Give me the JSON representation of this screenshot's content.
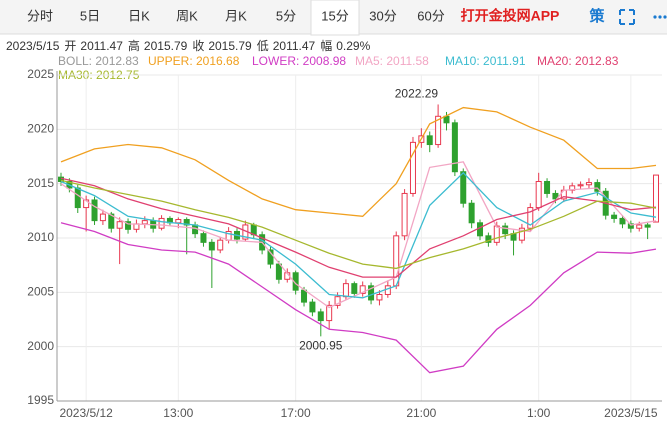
{
  "tabs": [
    {
      "label": "分时"
    },
    {
      "label": "5日"
    },
    {
      "label": "日K"
    },
    {
      "label": "周K"
    },
    {
      "label": "月K"
    },
    {
      "label": "5分"
    },
    {
      "label": "15分",
      "active": true
    },
    {
      "label": "30分"
    },
    {
      "label": "60分"
    }
  ],
  "app_link": "打开金投网APP",
  "strategy": "策",
  "quote": {
    "date": "2023/5/15",
    "items": [
      {
        "label": "开",
        "value": "2011.47"
      },
      {
        "label": "高",
        "value": "2015.79"
      },
      {
        "label": "收",
        "value": "2015.79"
      },
      {
        "label": "低",
        "value": "2011.47"
      },
      {
        "label": "幅",
        "value": "0.29%"
      }
    ]
  },
  "chart_data": {
    "type": "candlestick",
    "up_color": "#e8384f",
    "down_color": "#2ea12e",
    "grid": true,
    "ylim": [
      1995,
      2025
    ],
    "yticks": [
      1995,
      2000,
      2005,
      2010,
      2015,
      2020,
      2025
    ],
    "categories": [
      null,
      null,
      null,
      "2023/5/12",
      null,
      null,
      null,
      null,
      null,
      null,
      null,
      null,
      null,
      null,
      "13:00",
      null,
      null,
      null,
      null,
      null,
      null,
      null,
      null,
      null,
      null,
      null,
      null,
      null,
      "17:00",
      null,
      null,
      null,
      null,
      null,
      null,
      null,
      null,
      null,
      null,
      null,
      null,
      null,
      null,
      "21:00",
      null,
      null,
      null,
      null,
      null,
      null,
      null,
      null,
      null,
      null,
      null,
      null,
      null,
      "1:00",
      null,
      null,
      null,
      null,
      null,
      null,
      null,
      null,
      null,
      null,
      "2023/5/15",
      null,
      null,
      null
    ],
    "candles": {
      "open": [
        2015.6,
        2015.2,
        2014.6,
        2012.8,
        2013.5,
        2011.6,
        2012.2,
        2010.9,
        2011.5,
        2010.8,
        2011.3,
        2011.6,
        2010.9,
        2011.8,
        2011.4,
        2011.7,
        2011.2,
        2010.4,
        2009.6,
        2008.9,
        2009.8,
        2010.6,
        2009.9,
        2011.2,
        2010.3,
        2008.9,
        2007.6,
        2006.2,
        2006.8,
        2005.2,
        2004.1,
        2003.2,
        2002.4,
        2003.8,
        2004.6,
        2005.8,
        2004.9,
        2005.6,
        2004.3,
        2004.8,
        2005.6,
        2010.2,
        2014.1,
        2018.8,
        2019.4,
        2018.6,
        2021.2,
        2020.6,
        2016.1,
        2013.2,
        2011.4,
        2010.2,
        2009.6,
        2011.1,
        2010.4,
        2009.8,
        2010.9,
        2012.8,
        2015.2,
        2014.1,
        2013.6,
        2014.4,
        2014.8,
        2014.9,
        2015.1,
        2014.3,
        2012.1,
        2011.8,
        2011.3,
        2010.9,
        2011.2,
        2011.47
      ],
      "high": [
        2016.0,
        2015.5,
        2014.9,
        2013.9,
        2013.8,
        2012.6,
        2012.4,
        2011.9,
        2011.8,
        2011.7,
        2012.0,
        2011.9,
        2012.1,
        2012.0,
        2011.9,
        2011.9,
        2011.5,
        2010.7,
        2009.9,
        2010.1,
        2011.0,
        2010.9,
        2011.6,
        2011.4,
        2010.6,
        2009.2,
        2007.9,
        2007.2,
        2007.0,
        2005.5,
        2004.4,
        2003.5,
        2004.2,
        2005.0,
        2006.2,
        2006.0,
        2006.0,
        2005.9,
        2005.2,
        2006.1,
        2010.6,
        2014.5,
        2019.3,
        2020.1,
        2019.8,
        2022.29,
        2021.6,
        2020.9,
        2016.4,
        2013.5,
        2011.7,
        2010.5,
        2011.5,
        2011.4,
        2010.7,
        2011.3,
        2013.2,
        2016.0,
        2015.5,
        2014.4,
        2014.8,
        2015.1,
        2015.2,
        2015.5,
        2015.4,
        2014.6,
        2012.4,
        2012.1,
        2011.6,
        2011.5,
        2011.4,
        2015.79
      ],
      "low": [
        2014.8,
        2014.2,
        2012.3,
        2010.6,
        2011.2,
        2011.2,
        2010.5,
        2007.6,
        2010.4,
        2010.5,
        2010.9,
        2010.5,
        2010.7,
        2011.1,
        2010.9,
        2008.5,
        2010.0,
        2009.2,
        2005.4,
        2008.6,
        2009.5,
        2009.5,
        2009.7,
        2009.9,
        2008.5,
        2007.2,
        2005.8,
        2005.9,
        2004.8,
        2003.7,
        2002.8,
        2000.95,
        2001.6,
        2003.5,
        2004.3,
        2004.5,
        2004.6,
        2003.9,
        2003.8,
        2004.5,
        2005.3,
        2009.8,
        2013.8,
        2018.3,
        2017.9,
        2018.3,
        2019.9,
        2015.7,
        2012.8,
        2010.9,
        2009.8,
        2009.2,
        2009.3,
        2009.9,
        2008.4,
        2009.5,
        2010.6,
        2012.5,
        2013.7,
        2013.2,
        2013.3,
        2014.1,
        2014.5,
        2014.6,
        2013.9,
        2011.7,
        2011.4,
        2010.9,
        2010.5,
        2010.6,
        2009.9,
        2011.47
      ],
      "close": [
        2015.2,
        2014.6,
        2012.8,
        2013.5,
        2011.6,
        2012.2,
        2010.9,
        2011.5,
        2010.8,
        2011.3,
        2011.6,
        2010.9,
        2011.8,
        2011.4,
        2011.7,
        2011.2,
        2010.4,
        2009.6,
        2008.9,
        2009.8,
        2010.6,
        2009.9,
        2011.2,
        2010.3,
        2008.9,
        2007.6,
        2006.2,
        2006.8,
        2005.2,
        2004.1,
        2003.2,
        2002.4,
        2003.8,
        2004.6,
        2005.8,
        2004.9,
        2005.6,
        2004.3,
        2004.8,
        2005.6,
        2010.2,
        2014.1,
        2018.8,
        2019.4,
        2018.6,
        2021.2,
        2020.6,
        2016.1,
        2013.2,
        2011.4,
        2010.2,
        2009.6,
        2011.1,
        2010.4,
        2009.8,
        2010.9,
        2012.8,
        2015.2,
        2014.1,
        2013.6,
        2014.4,
        2014.8,
        2014.9,
        2015.1,
        2014.3,
        2012.1,
        2011.8,
        2011.3,
        2010.9,
        2011.2,
        2011.0,
        2015.79
      ]
    },
    "indicators": [
      {
        "name": "BOLL: 2012.83",
        "color": "#999999"
      },
      {
        "name": "UPPER: 2016.68",
        "color": "#f0a020",
        "x": [
          0,
          4,
          8,
          12,
          16,
          20,
          24,
          28,
          32,
          36,
          40,
          44,
          48,
          52,
          56,
          60,
          64,
          68,
          71
        ],
        "values": [
          2017,
          2018.2,
          2018.6,
          2018.3,
          2017.2,
          2015.3,
          2013.6,
          2012.6,
          2012.3,
          2012.0,
          2015.0,
          2020.5,
          2022.0,
          2021.6,
          2020.2,
          2019.0,
          2016.4,
          2016.4,
          2016.68
        ]
      },
      {
        "name": "LOWER: 2008.98",
        "color": "#d03cc4",
        "x": [
          0,
          4,
          8,
          12,
          16,
          20,
          24,
          28,
          32,
          36,
          40,
          44,
          48,
          52,
          56,
          60,
          64,
          68,
          71
        ],
        "values": [
          2011.4,
          2010.6,
          2009.4,
          2008.9,
          2008.7,
          2007.6,
          2005.5,
          2003.4,
          2001.6,
          2001.3,
          2000.6,
          1997.6,
          1998.2,
          2001.6,
          2003.8,
          2006.8,
          2008.7,
          2008.6,
          2008.98
        ]
      },
      {
        "name": "MA5: 2011.58",
        "color": "#f2a6c4",
        "x": [
          0,
          4,
          8,
          12,
          16,
          20,
          24,
          28,
          32,
          36,
          40,
          44,
          48,
          52,
          56,
          60,
          64,
          68,
          71
        ],
        "values": [
          2015.0,
          2012.9,
          2011.3,
          2011.2,
          2010.9,
          2009.8,
          2009.6,
          2005.8,
          2003.6,
          2005.0,
          2006.4,
          2016.5,
          2017.0,
          2011.0,
          2010.6,
          2014.4,
          2014.6,
          2011.2,
          2011.58
        ]
      },
      {
        "name": "MA10: 2011.91",
        "color": "#3cbcd0",
        "x": [
          0,
          4,
          8,
          12,
          16,
          20,
          24,
          28,
          32,
          36,
          40,
          44,
          48,
          52,
          56,
          60,
          64,
          68,
          71
        ],
        "values": [
          2015.2,
          2013.9,
          2012.0,
          2011.5,
          2011.2,
          2010.4,
          2009.8,
          2007.6,
          2004.8,
          2004.5,
          2005.6,
          2013.0,
          2016.0,
          2012.8,
          2011.2,
          2013.4,
          2014.2,
          2012.3,
          2011.91
        ]
      },
      {
        "name": "MA20: 2012.83",
        "color": "#e04070",
        "x": [
          0,
          4,
          8,
          12,
          16,
          20,
          24,
          28,
          32,
          36,
          40,
          44,
          48,
          52,
          56,
          60,
          64,
          68,
          71
        ],
        "values": [
          2015.5,
          2014.8,
          2013.6,
          2012.7,
          2012.0,
          2011.3,
          2010.0,
          2008.7,
          2007.3,
          2006.4,
          2006.4,
          2009.0,
          2010.2,
          2011.7,
          2012.4,
          2013.8,
          2013.4,
          2012.6,
          2012.83
        ]
      },
      {
        "name": "MA30: 2012.75",
        "color": "#a6b82e",
        "x": [
          0,
          4,
          8,
          12,
          16,
          20,
          24,
          28,
          32,
          36,
          40,
          44,
          48,
          52,
          56,
          60,
          64,
          68,
          71
        ],
        "values": [
          2015.3,
          2014.6,
          2014.0,
          2013.4,
          2012.6,
          2011.9,
          2011.0,
          2009.8,
          2008.6,
          2007.6,
          2007.2,
          2008.2,
          2009.0,
          2010.0,
          2010.8,
          2012.0,
          2013.4,
          2013.2,
          2012.75
        ]
      }
    ]
  }
}
